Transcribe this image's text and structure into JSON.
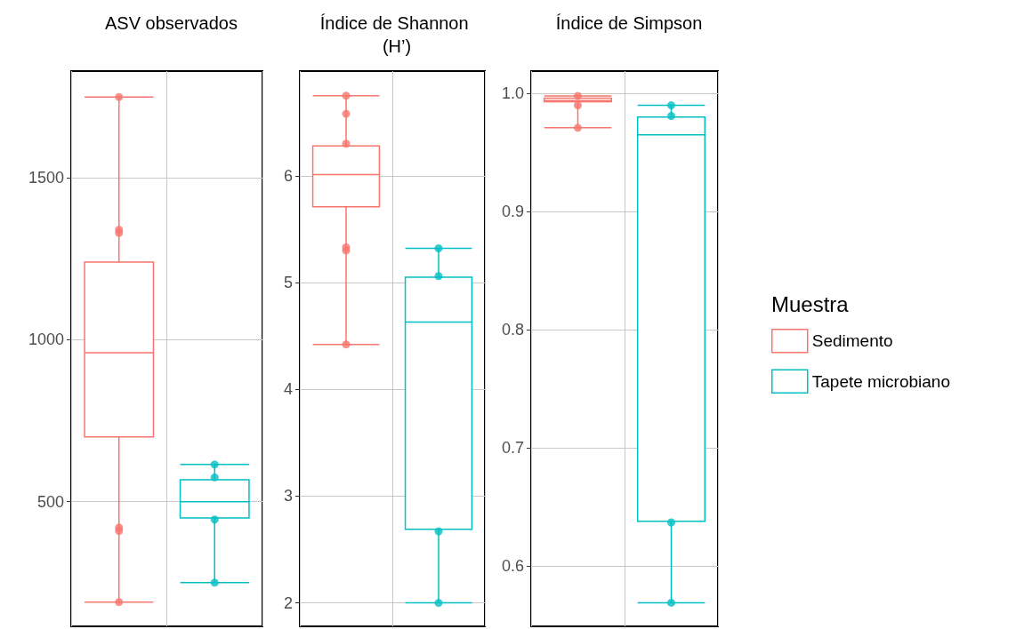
{
  "chart_data": [
    {
      "type": "box",
      "title": "ASV observados",
      "categories": [
        null,
        null
      ],
      "ylim": [
        115,
        1830
      ],
      "yticks": [
        500,
        1000,
        1500
      ],
      "grid": true,
      "tick_labels": "y",
      "legend": false,
      "series": [
        {
          "type": "box",
          "color": "#f8766d",
          "boxes": [
            {
              "low": 190,
              "q1": 700,
              "median": 960,
              "q3": 1240,
              "high": 1750
            },
            null
          ]
        },
        {
          "type": "box",
          "color": "#00bfc4",
          "boxes": [
            null,
            {
              "low": 250,
              "q1": 450,
              "median": 500,
              "q3": 568,
              "high": 615
            }
          ]
        },
        {
          "type": "scatter",
          "colors": [
            "#f8766d",
            "#00bfc4"
          ],
          "values": [
            1750,
            615
          ]
        },
        {
          "type": "scatter",
          "colors": [
            "#f8766d",
            "#00bfc4"
          ],
          "values": [
            1340,
            575
          ]
        },
        {
          "type": "scatter",
          "colors": [
            "#f8766d",
            "#00bfc4"
          ],
          "values": [
            1330,
            445
          ]
        },
        {
          "type": "scatter",
          "colors": [
            "#f8766d",
            "#00bfc4"
          ],
          "values": [
            420,
            250
          ]
        },
        {
          "type": "scatter",
          "colors": [
            "#f8766d",
            "#00bfc4"
          ],
          "values": [
            410,
            null
          ]
        },
        {
          "type": "scatter",
          "colors": [
            "#f8766d",
            "#00bfc4"
          ],
          "values": [
            190,
            null
          ]
        }
      ]
    },
    {
      "type": "box",
      "title": "Índice de Shannon (H’)",
      "categories": [
        null,
        null
      ],
      "ylim": [
        1.78,
        6.98
      ],
      "yticks": [
        2,
        3,
        4,
        5,
        6
      ],
      "grid": true,
      "tick_labels": "y",
      "legend": false,
      "series": [
        {
          "type": "box",
          "color": "#f8766d",
          "boxes": [
            {
              "low": 4.42,
              "q1": 5.71,
              "median": 6.01,
              "q3": 6.28,
              "high": 6.75
            },
            null
          ]
        },
        {
          "type": "box",
          "color": "#00bfc4",
          "boxes": [
            null,
            {
              "low": 2.0,
              "q1": 2.69,
              "median": 4.63,
              "q3": 5.05,
              "high": 5.32
            }
          ]
        },
        {
          "type": "scatter",
          "colors": [
            "#f8766d",
            "#00bfc4"
          ],
          "values": [
            6.75,
            5.32
          ]
        },
        {
          "type": "scatter",
          "colors": [
            "#f8766d",
            "#00bfc4"
          ],
          "values": [
            6.58,
            5.06
          ]
        },
        {
          "type": "scatter",
          "colors": [
            "#f8766d",
            "#00bfc4"
          ],
          "values": [
            6.3,
            2.67
          ]
        },
        {
          "type": "scatter",
          "colors": [
            "#f8766d",
            "#00bfc4"
          ],
          "values": [
            5.33,
            2.0
          ]
        },
        {
          "type": "scatter",
          "colors": [
            "#f8766d",
            "#00bfc4"
          ],
          "values": [
            5.3,
            null
          ]
        },
        {
          "type": "scatter",
          "colors": [
            "#f8766d",
            "#00bfc4"
          ],
          "values": [
            4.42,
            null
          ]
        }
      ]
    },
    {
      "type": "box",
      "title": "Índice de Simpson",
      "categories": [
        null,
        null
      ],
      "ylim": [
        0.549,
        1.019
      ],
      "yticks": [
        0.6,
        0.7,
        0.8,
        0.9,
        {
          "value": 1,
          "label": "1.0"
        }
      ],
      "grid": true,
      "tick_labels": "y",
      "legend": "right",
      "legend_title": "Muestra",
      "series": [
        {
          "type": "box",
          "name": "Sedimento",
          "color": "#f8766d",
          "boxes": [
            {
              "low": 0.971,
              "q1": 0.993,
              "median": 0.994,
              "q3": 0.996,
              "high": 0.998
            },
            null
          ]
        },
        {
          "type": "box",
          "name": "Tapete microbiano",
          "color": "#00bfc4",
          "boxes": [
            null,
            {
              "low": 0.569,
              "q1": 0.638,
              "median": 0.965,
              "q3": 0.98,
              "high": 0.99
            }
          ]
        },
        {
          "type": "scatter",
          "colors": [
            "#f8766d",
            "#00bfc4"
          ],
          "values": [
            0.998,
            0.99
          ]
        },
        {
          "type": "scatter",
          "colors": [
            "#f8766d",
            "#00bfc4"
          ],
          "values": [
            0.99,
            0.981
          ]
        },
        {
          "type": "scatter",
          "colors": [
            "#f8766d",
            "#00bfc4"
          ],
          "values": [
            0.971,
            0.637
          ]
        },
        {
          "type": "scatter",
          "colors": [
            "#f8766d",
            "#00bfc4"
          ],
          "values": [
            null,
            0.569
          ]
        }
      ]
    }
  ]
}
